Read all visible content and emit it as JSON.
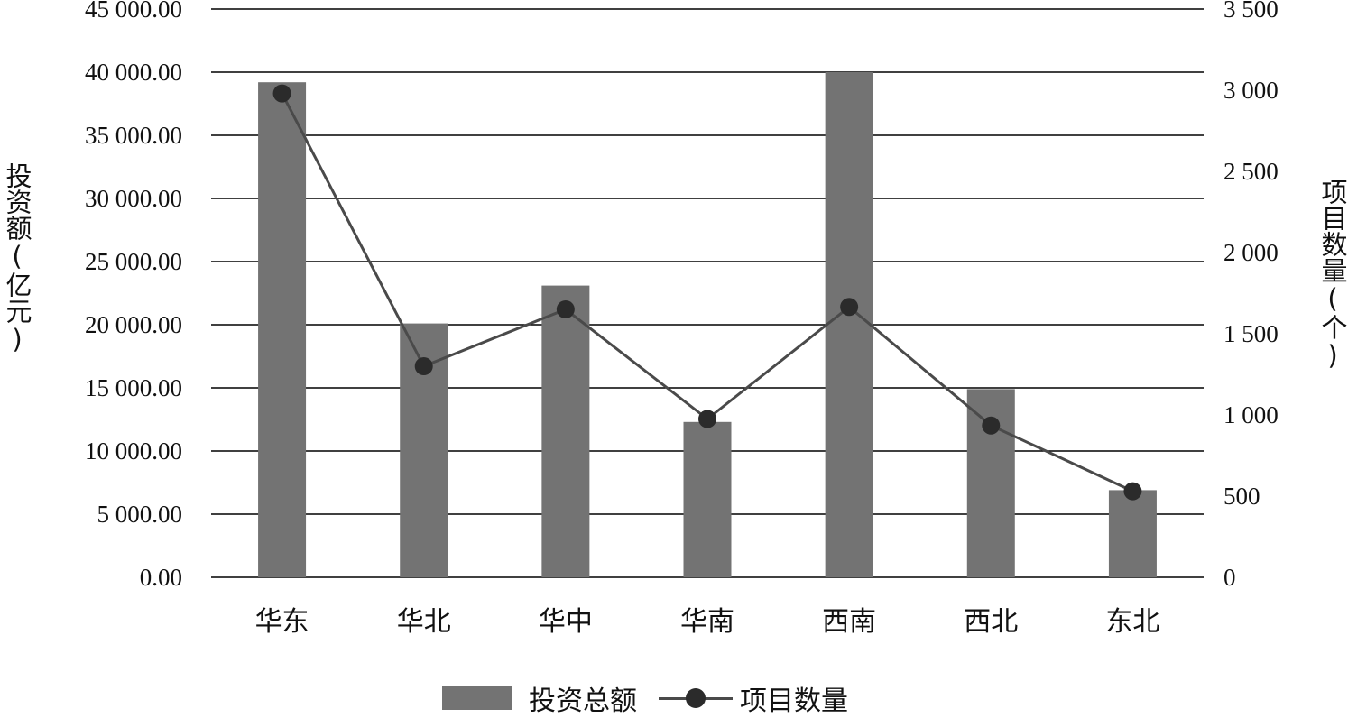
{
  "chart_data": {
    "type": "bar+line",
    "title": "",
    "xlabel": "",
    "ylabel_left": "投资额(亿元)",
    "ylabel_right": "项目数量(个)",
    "categories": [
      "华东",
      "华北",
      "华中",
      "华南",
      "西南",
      "西北",
      "东北"
    ],
    "series": [
      {
        "name": "投资总额",
        "type": "bar",
        "axis": "left",
        "color": "#737373",
        "values": [
          39200,
          20100,
          23100,
          12300,
          40000,
          14900,
          6900
        ]
      },
      {
        "name": "项目数量",
        "type": "line",
        "axis": "right",
        "color": "#4a4a4a",
        "marker_color": "#2b2b2b",
        "values": [
          2980,
          1300,
          1650,
          975,
          1665,
          935,
          530
        ]
      }
    ],
    "ylim_left": [
      0,
      45000
    ],
    "ylim_right": [
      0,
      3500
    ],
    "left_ticks": [
      "0.00",
      "5 000.00",
      "10 000.00",
      "15 000.00",
      "20 000.00",
      "25 000.00",
      "30 000.00",
      "35 000.00",
      "40 000.00",
      "45 000.00"
    ],
    "right_ticks": [
      "0",
      "500",
      "1 000",
      "1 500",
      "2 000",
      "2 500",
      "3 000",
      "3 500"
    ],
    "grid": true,
    "legend_position": "bottom"
  }
}
